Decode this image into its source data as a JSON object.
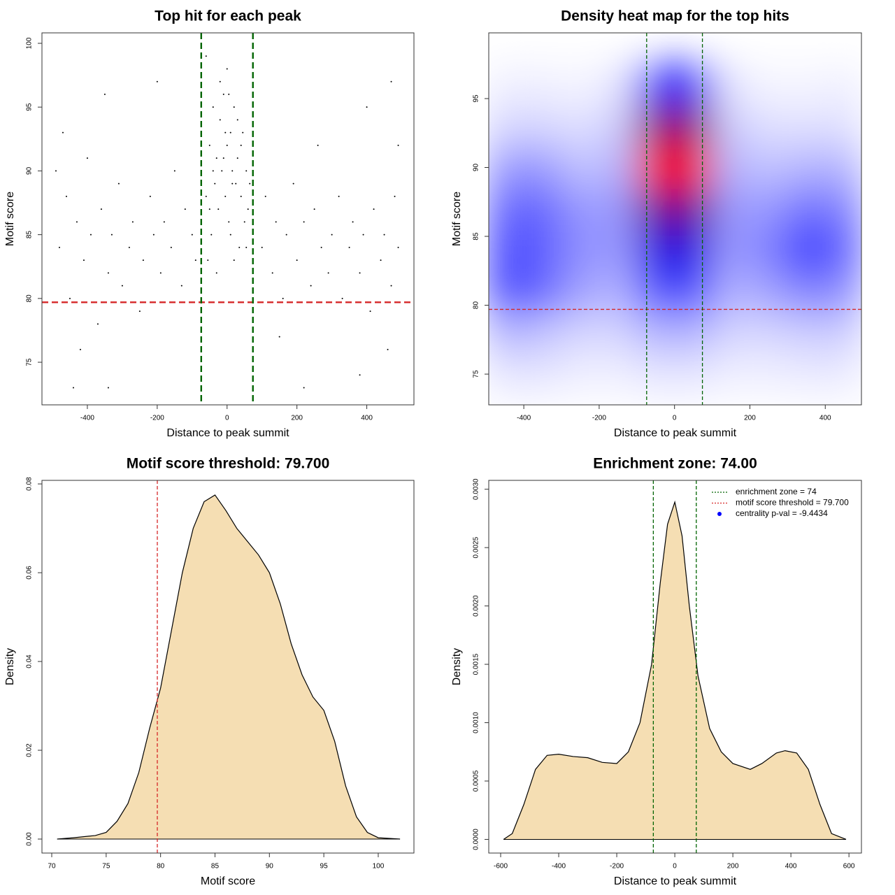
{
  "chart_data": [
    {
      "type": "scatter",
      "title": "Top hit for each peak",
      "xlabel": "Distance to peak summit",
      "ylabel": "Motif score",
      "xlim": [
        -530,
        535
      ],
      "ylim": [
        71.66,
        100.82
      ],
      "xticks": [
        -400,
        -200,
        0,
        200,
        400
      ],
      "yticks": [
        75,
        80,
        85,
        90,
        95,
        100
      ],
      "color": "#000000",
      "vlines": [
        -74,
        74
      ],
      "vline_color": "#006400",
      "hline": 79.7,
      "hline_color": "#d62728",
      "x": [
        -480,
        -460,
        -450,
        -430,
        -410,
        -400,
        -390,
        -370,
        -360,
        -340,
        -330,
        -310,
        -300,
        -280,
        -270,
        -250,
        -240,
        -220,
        -210,
        -190,
        -180,
        -160,
        -150,
        -130,
        -120,
        -100,
        -90,
        100,
        110,
        130,
        140,
        160,
        170,
        190,
        200,
        220,
        240,
        250,
        270,
        290,
        300,
        320,
        330,
        350,
        360,
        380,
        390,
        410,
        420,
        440,
        450,
        470,
        480,
        490,
        -470,
        -420,
        -350,
        -200,
        -60,
        150,
        260,
        400,
        460,
        -440,
        -340,
        220,
        380,
        470,
        -490,
        490,
        -60,
        -50,
        -45,
        -40,
        -35,
        -30,
        -25,
        -20,
        -15,
        -10,
        -5,
        0,
        5,
        10,
        15,
        20,
        25,
        30,
        35,
        40,
        45,
        50,
        55,
        60,
        -55,
        -20,
        0,
        10,
        -30,
        20,
        -40,
        30,
        -10,
        15,
        -5,
        5,
        40,
        -50,
        55,
        65
      ],
      "y": [
        84,
        88,
        80,
        86,
        83,
        91,
        85,
        78,
        87,
        82,
        85,
        89,
        81,
        84,
        86,
        79,
        83,
        88,
        85,
        82,
        86,
        84,
        90,
        81,
        87,
        85,
        83,
        84,
        88,
        82,
        86,
        80,
        85,
        89,
        83,
        86,
        81,
        87,
        84,
        82,
        85,
        88,
        80,
        84,
        86,
        82,
        85,
        79,
        87,
        83,
        85,
        81,
        88,
        84,
        93,
        76,
        96,
        97,
        99,
        77,
        92,
        95,
        76,
        73,
        73,
        73,
        74,
        97,
        90,
        92,
        88,
        92,
        85,
        95,
        89,
        91,
        87,
        94,
        90,
        96,
        88,
        92,
        86,
        93,
        90,
        95,
        89,
        91,
        84,
        88,
        93,
        86,
        90,
        87,
        83,
        97,
        98,
        85,
        82,
        83,
        90,
        94,
        91,
        89,
        93,
        96,
        92,
        87,
        84,
        89
      ]
    },
    {
      "type": "heatmap",
      "title": "Density heat map for the top hits",
      "xlabel": "Distance to peak summit",
      "ylabel": "Motif score",
      "xlim": [
        -493,
        496
      ],
      "ylim": [
        72.77,
        99.77
      ],
      "xticks": [
        -400,
        -200,
        0,
        200,
        400
      ],
      "yticks": [
        75,
        80,
        85,
        90,
        95
      ],
      "vlines": [
        -74,
        74
      ],
      "vline_color": "#006400",
      "hline": 79.7,
      "hline_color": "#d62728",
      "x": [
        -450,
        -350,
        -250,
        -150,
        -50,
        50,
        150,
        250,
        350,
        450
      ],
      "y": [
        75,
        78,
        81,
        84,
        87,
        90,
        93,
        96
      ],
      "z": [
        [
          0.05,
          0.05,
          0.03,
          0.03,
          0.05,
          0.05,
          0.03,
          0.03,
          0.04,
          0.04
        ],
        [
          0.15,
          0.12,
          0.08,
          0.08,
          0.15,
          0.15,
          0.08,
          0.08,
          0.1,
          0.1
        ],
        [
          0.35,
          0.3,
          0.18,
          0.15,
          0.35,
          0.35,
          0.15,
          0.18,
          0.25,
          0.22
        ],
        [
          0.35,
          0.32,
          0.22,
          0.2,
          0.55,
          0.55,
          0.2,
          0.25,
          0.4,
          0.3
        ],
        [
          0.3,
          0.3,
          0.2,
          0.2,
          0.7,
          0.7,
          0.2,
          0.2,
          0.28,
          0.25
        ],
        [
          0.2,
          0.2,
          0.12,
          0.15,
          0.95,
          0.95,
          0.15,
          0.12,
          0.15,
          0.15
        ],
        [
          0.08,
          0.08,
          0.06,
          0.1,
          0.75,
          0.75,
          0.1,
          0.06,
          0.06,
          0.06
        ],
        [
          0.03,
          0.03,
          0.02,
          0.05,
          0.4,
          0.4,
          0.05,
          0.02,
          0.02,
          0.03
        ]
      ]
    },
    {
      "type": "density",
      "title": "Motif score threshold: 79.700",
      "xlabel": "Motif score",
      "ylabel": "Density",
      "xlim": [
        69.1,
        103.28
      ],
      "ylim": [
        -0.00315,
        0.0808
      ],
      "xticks": [
        70,
        75,
        80,
        85,
        90,
        95,
        100
      ],
      "yticks": [
        {
          "value": 0,
          "label": "0.00"
        },
        0.02,
        0.04,
        0.06,
        0.08
      ],
      "color": "#f5deb3",
      "vlines": [
        79.7
      ],
      "vline_color": "#d62728",
      "x": [
        70.5,
        72,
        74,
        75,
        76,
        77,
        78,
        79,
        80,
        81,
        82,
        83,
        84,
        85,
        86,
        87,
        88,
        89,
        90,
        91,
        92,
        93,
        94,
        95,
        96,
        97,
        98,
        99,
        100,
        102
      ],
      "y": [
        0,
        0.0003,
        0.0008,
        0.0015,
        0.004,
        0.008,
        0.015,
        0.025,
        0.034,
        0.047,
        0.06,
        0.07,
        0.076,
        0.0775,
        0.074,
        0.07,
        0.067,
        0.064,
        0.06,
        0.053,
        0.044,
        0.037,
        0.032,
        0.029,
        0.022,
        0.012,
        0.005,
        0.0015,
        0.0003,
        0
      ]
    },
    {
      "type": "density",
      "title": "Enrichment zone: 74.00",
      "xlabel": "Distance to peak summit",
      "ylabel": "Density",
      "xlim": [
        -641,
        643
      ],
      "ylim": [
        -0.000117,
        0.003076
      ],
      "xticks": [
        -600,
        -400,
        -200,
        0,
        200,
        400,
        600
      ],
      "yticks": [
        {
          "value": 0,
          "label": "0.0000"
        },
        0.0005,
        {
          "value": 0.001,
          "label": "0.0010"
        },
        0.0015,
        {
          "value": 0.002,
          "label": "0.0020"
        },
        0.0025,
        {
          "value": 0.003,
          "label": "0.0030"
        }
      ],
      "color": "#f5deb3",
      "vlines": [
        -74,
        74
      ],
      "vline_color": "#006400",
      "x": [
        -590,
        -560,
        -520,
        -480,
        -440,
        -400,
        -350,
        -300,
        -250,
        -200,
        -160,
        -120,
        -80,
        -50,
        -25,
        0,
        25,
        50,
        80,
        120,
        160,
        200,
        260,
        300,
        350,
        380,
        420,
        460,
        500,
        540,
        590
      ],
      "y": [
        0,
        5e-05,
        0.0003,
        0.0006,
        0.00072,
        0.00073,
        0.00071,
        0.0007,
        0.00066,
        0.00065,
        0.00075,
        0.001,
        0.0015,
        0.0022,
        0.0027,
        0.00289,
        0.0026,
        0.002,
        0.0014,
        0.00095,
        0.00075,
        0.00065,
        0.0006,
        0.00065,
        0.00074,
        0.00076,
        0.00074,
        0.0006,
        0.0003,
        5e-05,
        0
      ],
      "legend": [
        {
          "label": "enrichment zone = 74",
          "color": "#006400",
          "marker": "dotted"
        },
        {
          "label": "motif score threshold = 79.700",
          "color": "#d62728",
          "marker": "dotted"
        },
        {
          "label": "centrality p-val = -9.4434",
          "color": "#0000ff",
          "marker": "dot"
        }
      ]
    }
  ]
}
